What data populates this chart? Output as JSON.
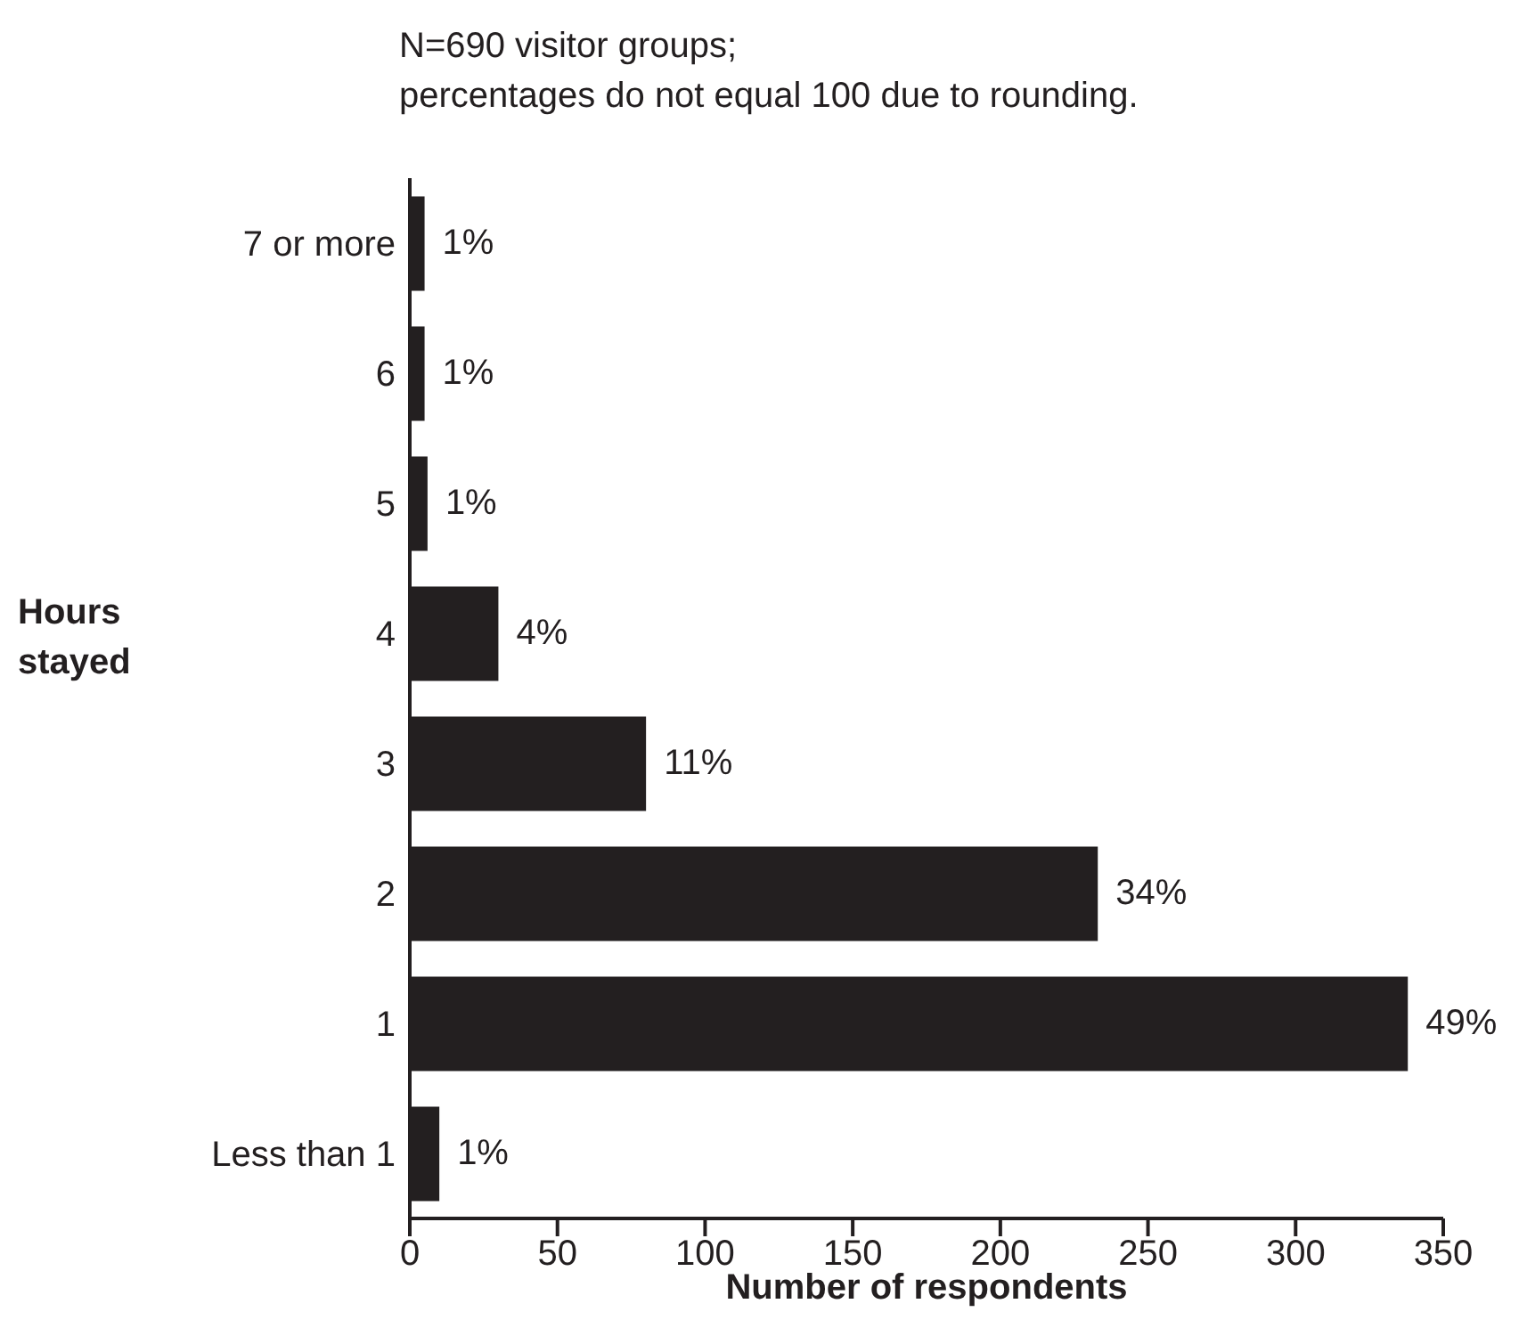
{
  "chart_data": {
    "type": "bar",
    "orientation": "horizontal",
    "annotations": [
      "N=690 visitor groups;",
      "percentages do not equal 100 due to rounding.",
      {
        "text": "1%",
        "x": 5,
        "y": "7 or more"
      },
      {
        "text": "1%",
        "x": 5,
        "y": "6"
      },
      {
        "text": "1%",
        "x": 6,
        "y": "5"
      },
      {
        "text": "4%",
        "x": 30,
        "y": "4"
      },
      {
        "text": "11%",
        "x": 80,
        "y": "3"
      },
      {
        "text": "34%",
        "x": 233,
        "y": "2"
      },
      {
        "text": "49%",
        "x": 338,
        "y": "1"
      },
      {
        "text": "1%",
        "x": 10,
        "y": "Less than 1"
      }
    ],
    "ylabel": "Hours stayed",
    "xlabel": "Number of respondents",
    "categories": [
      "7 or more",
      "6",
      "5",
      "4",
      "3",
      "2",
      "1",
      "Less than 1"
    ],
    "values": [
      5,
      5,
      6,
      30,
      80,
      233,
      338,
      10
    ],
    "color": "#231f20",
    "xlim": [
      0,
      350
    ],
    "xticks": [
      0,
      50,
      100,
      150,
      200,
      250,
      300,
      350
    ],
    "grid": false,
    "legend": false
  }
}
